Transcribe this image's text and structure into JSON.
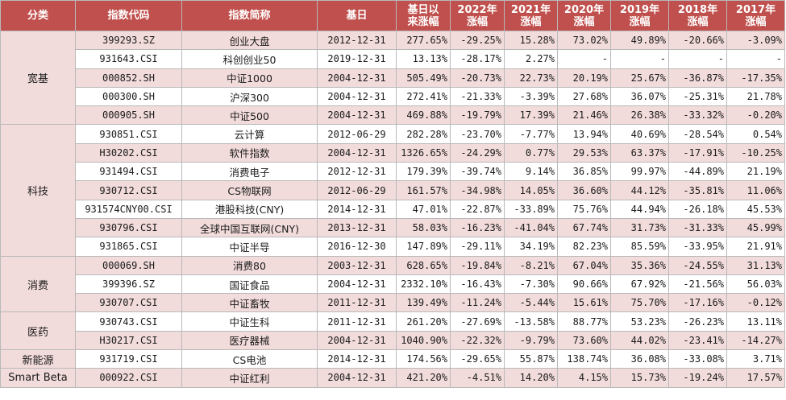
{
  "headers": {
    "category": "分类",
    "code": "指数代码",
    "name": "指数简称",
    "base_date": "基日",
    "since_base_1": "基日以",
    "since_base_2": "来涨幅",
    "y2022_1": "2022年",
    "y2022_2": "涨幅",
    "y2021_1": "2021年",
    "y2021_2": "涨幅",
    "y2020_1": "2020年",
    "y2020_2": "涨幅",
    "y2019_1": "2019年",
    "y2019_2": "涨幅",
    "y2018_1": "2018年",
    "y2018_2": "涨幅",
    "y2017_1": "2017年",
    "y2017_2": "涨幅"
  },
  "colors": {
    "header_bg": "#c0504d",
    "row_pink": "#f2dcdb",
    "row_white": "#ffffff",
    "grid": "#b9b9b9"
  },
  "groups": [
    {
      "category": "宽基",
      "rows": [
        [
          "399293.SZ",
          "创业大盘",
          "2012-12-31",
          "277.65%",
          "-29.25%",
          "15.28%",
          "73.02%",
          "49.89%",
          "-20.66%",
          "-3.09%"
        ],
        [
          "931643.CSI",
          "科创创业50",
          "2019-12-31",
          "13.13%",
          "-28.17%",
          "2.27%",
          "-",
          "-",
          "-",
          "-"
        ],
        [
          "000852.SH",
          "中证1000",
          "2004-12-31",
          "505.49%",
          "-20.73%",
          "22.73%",
          "20.19%",
          "25.67%",
          "-36.87%",
          "-17.35%"
        ],
        [
          "000300.SH",
          "沪深300",
          "2004-12-31",
          "272.41%",
          "-21.33%",
          "-3.39%",
          "27.68%",
          "36.07%",
          "-25.31%",
          "21.78%"
        ],
        [
          "000905.SH",
          "中证500",
          "2004-12-31",
          "469.88%",
          "-19.79%",
          "17.39%",
          "21.46%",
          "26.38%",
          "-33.32%",
          "-0.20%"
        ]
      ]
    },
    {
      "category": "科技",
      "rows": [
        [
          "930851.CSI",
          "云计算",
          "2012-06-29",
          "282.28%",
          "-23.70%",
          "-7.77%",
          "13.94%",
          "40.69%",
          "-28.54%",
          "0.54%"
        ],
        [
          "H30202.CSI",
          "软件指数",
          "2004-12-31",
          "1326.65%",
          "-24.29%",
          "0.77%",
          "29.53%",
          "63.37%",
          "-17.91%",
          "-10.25%"
        ],
        [
          "931494.CSI",
          "消费电子",
          "2012-12-31",
          "179.39%",
          "-39.74%",
          "9.14%",
          "36.85%",
          "99.97%",
          "-44.89%",
          "21.19%"
        ],
        [
          "930712.CSI",
          "CS物联网",
          "2012-06-29",
          "161.57%",
          "-34.98%",
          "14.05%",
          "36.60%",
          "44.12%",
          "-35.81%",
          "11.06%"
        ],
        [
          "931574CNY00.CSI",
          "港股科技(CNY)",
          "2014-12-31",
          "47.01%",
          "-22.87%",
          "-33.89%",
          "75.76%",
          "44.94%",
          "-26.18%",
          "45.53%"
        ],
        [
          "930796.CSI",
          "全球中国互联网(CNY)",
          "2013-12-31",
          "58.03%",
          "-16.23%",
          "-41.04%",
          "67.74%",
          "31.73%",
          "-31.33%",
          "45.99%"
        ],
        [
          "931865.CSI",
          "中证半导",
          "2016-12-30",
          "147.89%",
          "-29.11%",
          "34.19%",
          "82.23%",
          "85.59%",
          "-33.95%",
          "21.91%"
        ]
      ]
    },
    {
      "category": "消费",
      "rows": [
        [
          "000069.SH",
          "消费80",
          "2003-12-31",
          "628.65%",
          "-19.84%",
          "-8.21%",
          "67.04%",
          "35.36%",
          "-24.55%",
          "31.13%"
        ],
        [
          "399396.SZ",
          "国证食品",
          "2004-12-31",
          "2332.10%",
          "-16.43%",
          "-7.30%",
          "90.66%",
          "67.92%",
          "-21.56%",
          "56.03%"
        ],
        [
          "930707.CSI",
          "中证畜牧",
          "2011-12-31",
          "139.49%",
          "-11.24%",
          "-5.44%",
          "15.61%",
          "75.70%",
          "-17.16%",
          "-0.12%"
        ]
      ]
    },
    {
      "category": "医药",
      "rows": [
        [
          "930743.CSI",
          "中证生科",
          "2011-12-31",
          "261.20%",
          "-27.69%",
          "-13.58%",
          "88.77%",
          "53.23%",
          "-26.23%",
          "13.11%"
        ],
        [
          "H30217.CSI",
          "医疗器械",
          "2004-12-31",
          "1040.90%",
          "-22.32%",
          "-9.79%",
          "73.60%",
          "44.02%",
          "-23.41%",
          "-14.27%"
        ]
      ]
    },
    {
      "category": "新能源",
      "rows": [
        [
          "931719.CSI",
          "CS电池",
          "2014-12-31",
          "174.56%",
          "-29.65%",
          "55.87%",
          "138.74%",
          "36.08%",
          "-33.08%",
          "3.71%"
        ]
      ]
    },
    {
      "category": "Smart Beta",
      "rows": [
        [
          "000922.CSI",
          "中证红利",
          "2004-12-31",
          "421.20%",
          "-4.51%",
          "14.20%",
          "4.15%",
          "15.73%",
          "-19.24%",
          "17.57%"
        ]
      ]
    }
  ]
}
